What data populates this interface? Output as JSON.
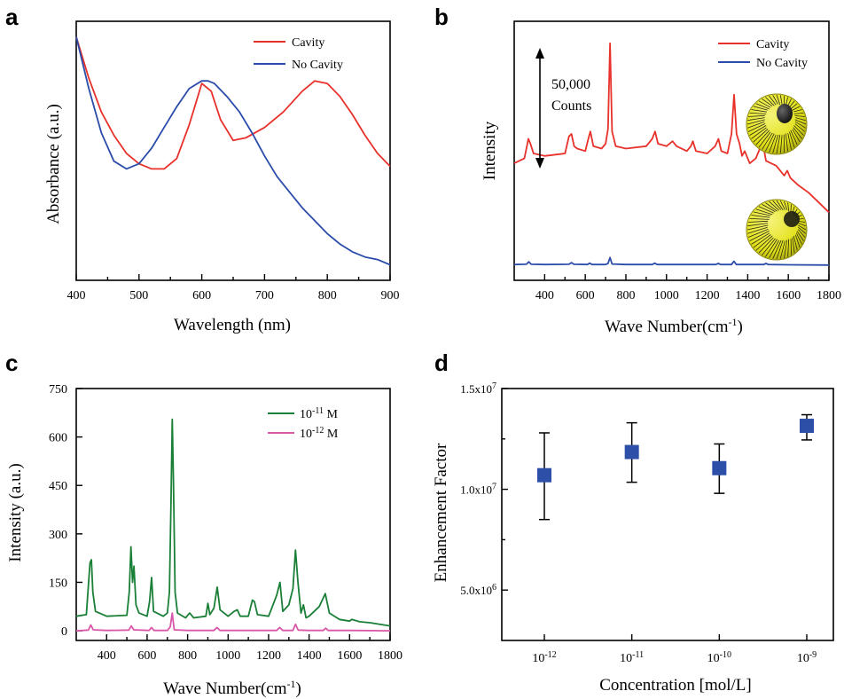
{
  "colors": {
    "red": "#e8312a",
    "blue": "#2b4ca9",
    "green": "#1a7f37",
    "pink": "#d957a8",
    "marker": "#2d4fa8",
    "sphere": "#e2e11a"
  },
  "chart_data": [
    {
      "panel": "a",
      "type": "line",
      "xlabel": "Wavelength (nm)",
      "ylabel": "Absorbance (a.u.)",
      "xlim": [
        400,
        900
      ],
      "xticks": [
        400,
        500,
        600,
        700,
        800,
        900
      ],
      "yticks_shown": false,
      "legend_position": "top-right",
      "series": [
        {
          "name": "Cavity",
          "color": "#e8312a",
          "x": [
            400,
            420,
            440,
            460,
            480,
            500,
            520,
            540,
            560,
            580,
            600,
            615,
            630,
            650,
            670,
            700,
            730,
            760,
            780,
            800,
            820,
            840,
            860,
            880,
            900
          ],
          "y": [
            0.94,
            0.78,
            0.65,
            0.56,
            0.49,
            0.45,
            0.43,
            0.43,
            0.47,
            0.6,
            0.76,
            0.73,
            0.62,
            0.54,
            0.55,
            0.59,
            0.65,
            0.73,
            0.77,
            0.76,
            0.71,
            0.64,
            0.56,
            0.49,
            0.44
          ]
        },
        {
          "name": "No Cavity",
          "color": "#2b4ca9",
          "x": [
            400,
            420,
            440,
            460,
            480,
            500,
            520,
            540,
            560,
            580,
            600,
            610,
            620,
            640,
            660,
            680,
            700,
            720,
            740,
            760,
            780,
            800,
            820,
            840,
            860,
            880,
            900
          ],
          "y": [
            0.94,
            0.74,
            0.57,
            0.46,
            0.43,
            0.45,
            0.51,
            0.59,
            0.67,
            0.74,
            0.77,
            0.77,
            0.76,
            0.71,
            0.65,
            0.57,
            0.48,
            0.4,
            0.34,
            0.28,
            0.23,
            0.18,
            0.14,
            0.11,
            0.09,
            0.08,
            0.06
          ]
        }
      ]
    },
    {
      "panel": "b",
      "type": "line",
      "xlabel": "Wave Number(cm",
      "xlabel_sup": "-1",
      "xlabel_end": ")",
      "ylabel": "Intensity",
      "xlim": [
        250,
        1800
      ],
      "xticks": [
        400,
        600,
        800,
        1000,
        1200,
        1400,
        1600,
        1800
      ],
      "legend_position": "top-right",
      "annotation": {
        "value": "50,000",
        "unit": "Counts"
      },
      "series": [
        {
          "name": "Cavity",
          "color": "#e8312a",
          "x": [
            250,
            300,
            320,
            330,
            345,
            400,
            500,
            520,
            532,
            545,
            560,
            600,
            615,
            625,
            640,
            680,
            700,
            712,
            722,
            732,
            750,
            800,
            900,
            930,
            944,
            958,
            1000,
            1030,
            1050,
            1100,
            1120,
            1130,
            1145,
            1200,
            1240,
            1256,
            1270,
            1300,
            1320,
            1333,
            1345,
            1360,
            1372,
            1385,
            1410,
            1440,
            1460,
            1475,
            1490,
            1540,
            1580,
            1595,
            1610,
            1650,
            1700,
            1800
          ],
          "y": [
            0.42,
            0.44,
            0.52,
            0.5,
            0.46,
            0.45,
            0.46,
            0.53,
            0.54,
            0.49,
            0.48,
            0.47,
            0.52,
            0.55,
            0.49,
            0.48,
            0.5,
            0.56,
            0.91,
            0.55,
            0.49,
            0.48,
            0.49,
            0.52,
            0.55,
            0.5,
            0.49,
            0.51,
            0.49,
            0.47,
            0.49,
            0.51,
            0.47,
            0.46,
            0.49,
            0.52,
            0.47,
            0.46,
            0.54,
            0.7,
            0.54,
            0.5,
            0.45,
            0.47,
            0.42,
            0.44,
            0.48,
            0.5,
            0.43,
            0.41,
            0.37,
            0.39,
            0.36,
            0.33,
            0.3,
            0.22
          ]
        },
        {
          "name": "No Cavity",
          "color": "#2b4ca9",
          "x": [
            250,
            310,
            322,
            334,
            400,
            520,
            532,
            544,
            610,
            622,
            634,
            700,
            712,
            722,
            732,
            800,
            930,
            942,
            954,
            1100,
            1243,
            1255,
            1267,
            1320,
            1332,
            1344,
            1400,
            1478,
            1490,
            1502,
            1600,
            1800
          ],
          "y": [
            0.006,
            0.007,
            0.016,
            0.007,
            0.006,
            0.007,
            0.013,
            0.007,
            0.006,
            0.011,
            0.006,
            0.006,
            0.01,
            0.032,
            0.008,
            0.006,
            0.006,
            0.011,
            0.006,
            0.006,
            0.006,
            0.01,
            0.006,
            0.006,
            0.018,
            0.006,
            0.006,
            0.006,
            0.01,
            0.006,
            0.005,
            0.004
          ]
        }
      ]
    },
    {
      "panel": "c",
      "type": "line",
      "xlabel": "Wave Number(cm",
      "xlabel_sup": "-1",
      "xlabel_end": ")",
      "ylabel": "Intensity (a.u.)",
      "xlim": [
        250,
        1800
      ],
      "ylim": [
        -30,
        750
      ],
      "xticks": [
        400,
        600,
        800,
        1000,
        1200,
        1400,
        1600,
        1800
      ],
      "yticks": [
        0,
        150,
        300,
        450,
        600,
        750
      ],
      "legend_position": "top-right",
      "series": [
        {
          "name_base": "10",
          "name_exp": "-11",
          "name_unit": " M",
          "color": "#1a7f37",
          "x": [
            250,
            300,
            318,
            325,
            332,
            345,
            400,
            500,
            512,
            520,
            528,
            535,
            545,
            560,
            600,
            612,
            622,
            632,
            680,
            700,
            710,
            718,
            724,
            730,
            738,
            750,
            790,
            810,
            830,
            890,
            900,
            910,
            930,
            946,
            960,
            1000,
            1030,
            1045,
            1060,
            1100,
            1120,
            1130,
            1145,
            1200,
            1240,
            1256,
            1270,
            1300,
            1320,
            1333,
            1345,
            1360,
            1372,
            1385,
            1400,
            1450,
            1480,
            1500,
            1550,
            1600,
            1610,
            1650,
            1700,
            1800
          ],
          "y": [
            45,
            50,
            210,
            220,
            120,
            60,
            45,
            48,
            120,
            260,
            150,
            200,
            80,
            55,
            45,
            90,
            165,
            60,
            45,
            55,
            120,
            400,
            655,
            470,
            120,
            55,
            40,
            55,
            40,
            45,
            85,
            50,
            70,
            135,
            65,
            45,
            60,
            65,
            45,
            45,
            95,
            90,
            50,
            45,
            110,
            150,
            60,
            80,
            130,
            250,
            150,
            55,
            80,
            40,
            45,
            75,
            115,
            55,
            35,
            30,
            35,
            28,
            25,
            15
          ]
        },
        {
          "name_base": "10",
          "name_exp": "-12",
          "name_unit": " M",
          "color": "#d957a8",
          "x": [
            250,
            310,
            322,
            334,
            400,
            510,
            522,
            534,
            610,
            622,
            634,
            700,
            714,
            724,
            734,
            800,
            930,
            945,
            960,
            1100,
            1240,
            1255,
            1270,
            1320,
            1333,
            1346,
            1400,
            1470,
            1482,
            1494,
            1600,
            1800
          ],
          "y": [
            0,
            2,
            18,
            3,
            1,
            2,
            15,
            3,
            1,
            10,
            1,
            1,
            12,
            55,
            3,
            1,
            1,
            10,
            1,
            1,
            1,
            10,
            1,
            1,
            20,
            2,
            1,
            1,
            8,
            1,
            1,
            0
          ]
        }
      ]
    },
    {
      "panel": "d",
      "type": "scatter",
      "xlabel": "Concentration [mol/L]",
      "ylabel": "Enhancement Factor",
      "ylim": [
        2500000,
        15000000
      ],
      "yticks": [
        {
          "value": 5000000,
          "mant": "5.0x10",
          "exp": "6"
        },
        {
          "value": 10000000,
          "mant": "1.0x10",
          "exp": "7"
        },
        {
          "value": 15000000,
          "mant": "1.5x10",
          "exp": "7"
        }
      ],
      "categories": [
        {
          "base": "10",
          "exp": "-12"
        },
        {
          "base": "10",
          "exp": "-11"
        },
        {
          "base": "10",
          "exp": "-10"
        },
        {
          "base": "10",
          "exp": "-9"
        }
      ],
      "values": [
        10700000,
        11850000,
        11050000,
        13150000
      ],
      "error_low": [
        8500000,
        10350000,
        9800000,
        12450000
      ],
      "error_high": [
        12800000,
        13300000,
        12250000,
        13700000
      ]
    }
  ]
}
